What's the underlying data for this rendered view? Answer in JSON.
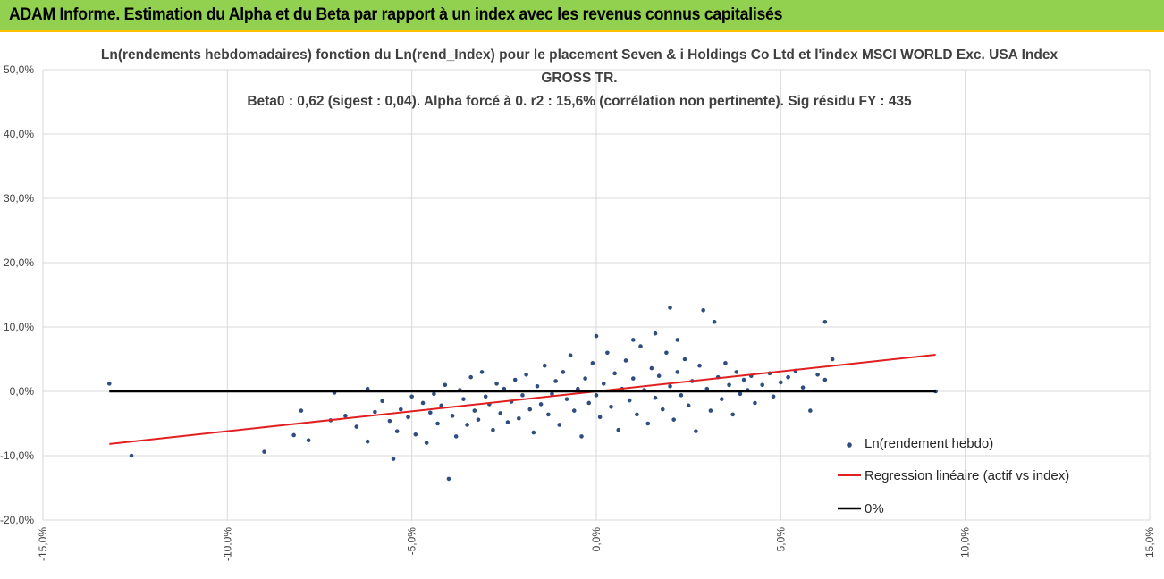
{
  "banner": {
    "title": "ADAM Informe. Estimation du Alpha et du Beta par rapport à un index avec les revenus connus capitalisés"
  },
  "colors": {
    "banner_bg": "#92d050",
    "banner_border": "#ffc000",
    "points": "#2f4d7e",
    "regression": "#e02020",
    "zero_line": "#000000",
    "grid": "#d9d9d9"
  },
  "chart_data": {
    "type": "scatter",
    "title_lines": [
      "Ln(rendements hebdomadaires) fonction du Ln(rend_Index) pour le placement Seven & i Holdings Co Ltd et l'index MSCI WORLD Exc. USA Index",
      "GROSS TR.",
      "Beta0 : 0,62  (sigest : 0,04).  Alpha forcé à 0. r2 : 15,6% (corrélation non pertinente). Sig résidu FY : 435"
    ],
    "xlim": [
      -0.15,
      0.15
    ],
    "ylim": [
      -0.2,
      0.5
    ],
    "x_ticks": [
      -0.15,
      -0.1,
      -0.05,
      0.0,
      0.05,
      0.1,
      0.15
    ],
    "x_tick_labels": [
      "-15,0%",
      "-10,0%",
      "-5,0%",
      "0,0%",
      "5,0%",
      "10,0%",
      "15,0%"
    ],
    "y_ticks": [
      -0.2,
      -0.1,
      0.0,
      0.1,
      0.2,
      0.3,
      0.4,
      0.5
    ],
    "y_tick_labels": [
      "-20,0%",
      "-10,0%",
      "0,0%",
      "10,0%",
      "20,0%",
      "30,0%",
      "40,0%",
      "50,0%"
    ],
    "grid": true,
    "legend_position": "bottom-right",
    "series": [
      {
        "name": "Ln(rendement hebdo)",
        "kind": "scatter",
        "points": [
          [
            -0.132,
            0.012
          ],
          [
            -0.126,
            -0.1
          ],
          [
            -0.09,
            -0.094
          ],
          [
            -0.082,
            -0.068
          ],
          [
            -0.08,
            -0.03
          ],
          [
            -0.078,
            -0.076
          ],
          [
            -0.072,
            -0.045
          ],
          [
            -0.071,
            -0.002
          ],
          [
            -0.068,
            -0.038
          ],
          [
            -0.065,
            -0.055
          ],
          [
            -0.062,
            -0.078
          ],
          [
            -0.062,
            0.004
          ],
          [
            -0.06,
            -0.032
          ],
          [
            -0.058,
            -0.015
          ],
          [
            -0.056,
            -0.046
          ],
          [
            -0.055,
            -0.105
          ],
          [
            -0.054,
            -0.062
          ],
          [
            -0.053,
            -0.028
          ],
          [
            -0.051,
            -0.04
          ],
          [
            -0.05,
            -0.008
          ],
          [
            -0.049,
            -0.067
          ],
          [
            -0.047,
            -0.018
          ],
          [
            -0.046,
            -0.08
          ],
          [
            -0.045,
            -0.033
          ],
          [
            -0.044,
            -0.004
          ],
          [
            -0.043,
            -0.05
          ],
          [
            -0.042,
            -0.022
          ],
          [
            -0.041,
            0.01
          ],
          [
            -0.04,
            -0.136
          ],
          [
            -0.039,
            -0.038
          ],
          [
            -0.038,
            -0.07
          ],
          [
            -0.037,
            0.002
          ],
          [
            -0.036,
            -0.012
          ],
          [
            -0.035,
            -0.052
          ],
          [
            -0.034,
            0.022
          ],
          [
            -0.033,
            -0.03
          ],
          [
            -0.032,
            -0.044
          ],
          [
            -0.031,
            0.03
          ],
          [
            -0.03,
            -0.008
          ],
          [
            -0.029,
            -0.02
          ],
          [
            -0.028,
            -0.06
          ],
          [
            -0.027,
            0.012
          ],
          [
            -0.026,
            -0.034
          ],
          [
            -0.025,
            0.004
          ],
          [
            -0.024,
            -0.048
          ],
          [
            -0.023,
            -0.016
          ],
          [
            -0.022,
            0.018
          ],
          [
            -0.021,
            -0.042
          ],
          [
            -0.02,
            -0.006
          ],
          [
            -0.019,
            0.026
          ],
          [
            -0.018,
            -0.028
          ],
          [
            -0.017,
            -0.064
          ],
          [
            -0.016,
            0.008
          ],
          [
            -0.015,
            -0.02
          ],
          [
            -0.014,
            0.04
          ],
          [
            -0.013,
            -0.036
          ],
          [
            -0.012,
            -0.004
          ],
          [
            -0.011,
            0.016
          ],
          [
            -0.01,
            -0.052
          ],
          [
            -0.009,
            0.03
          ],
          [
            -0.008,
            -0.012
          ],
          [
            -0.007,
            0.056
          ],
          [
            -0.006,
            -0.03
          ],
          [
            -0.005,
            0.004
          ],
          [
            -0.004,
            -0.07
          ],
          [
            -0.003,
            0.02
          ],
          [
            -0.002,
            -0.018
          ],
          [
            -0.001,
            0.044
          ],
          [
            0.0,
            -0.006
          ],
          [
            0.0,
            0.086
          ],
          [
            0.001,
            -0.04
          ],
          [
            0.002,
            0.012
          ],
          [
            0.003,
            0.06
          ],
          [
            0.004,
            -0.024
          ],
          [
            0.005,
            0.028
          ],
          [
            0.006,
            -0.06
          ],
          [
            0.007,
            0.004
          ],
          [
            0.008,
            0.048
          ],
          [
            0.009,
            -0.014
          ],
          [
            0.01,
            0.02
          ],
          [
            0.011,
            -0.036
          ],
          [
            0.012,
            0.07
          ],
          [
            0.013,
            0.002
          ],
          [
            0.014,
            -0.05
          ],
          [
            0.015,
            0.036
          ],
          [
            0.016,
            -0.01
          ],
          [
            0.017,
            0.024
          ],
          [
            0.018,
            -0.028
          ],
          [
            0.019,
            0.06
          ],
          [
            0.02,
            0.008
          ],
          [
            0.021,
            -0.044
          ],
          [
            0.022,
            0.03
          ],
          [
            0.023,
            -0.006
          ],
          [
            0.024,
            0.05
          ],
          [
            0.025,
            -0.022
          ],
          [
            0.026,
            0.016
          ],
          [
            0.027,
            -0.062
          ],
          [
            0.028,
            0.04
          ],
          [
            0.029,
            0.126
          ],
          [
            0.03,
            0.004
          ],
          [
            0.031,
            -0.03
          ],
          [
            0.032,
            0.108
          ],
          [
            0.033,
            0.022
          ],
          [
            0.034,
            -0.012
          ],
          [
            0.035,
            0.044
          ],
          [
            0.036,
            0.01
          ],
          [
            0.037,
            -0.036
          ],
          [
            0.038,
            0.03
          ],
          [
            0.039,
            -0.004
          ],
          [
            0.04,
            0.018
          ],
          [
            0.041,
            0.002
          ],
          [
            0.042,
            0.024
          ],
          [
            0.043,
            -0.018
          ],
          [
            0.045,
            0.01
          ],
          [
            0.047,
            0.028
          ],
          [
            0.048,
            -0.008
          ],
          [
            0.05,
            0.014
          ],
          [
            0.052,
            0.022
          ],
          [
            0.054,
            0.032
          ],
          [
            0.056,
            0.006
          ],
          [
            0.058,
            -0.03
          ],
          [
            0.06,
            0.026
          ],
          [
            0.062,
            0.018
          ],
          [
            0.062,
            0.108
          ],
          [
            0.064,
            0.05
          ],
          [
            0.092,
            0.0
          ],
          [
            0.02,
            0.13
          ],
          [
            0.016,
            0.09
          ],
          [
            0.01,
            0.08
          ],
          [
            0.022,
            0.08
          ]
        ]
      },
      {
        "name": "Regression linéaire (actif vs index)",
        "kind": "line",
        "x": [
          -0.132,
          0.092
        ],
        "y": [
          -0.0818,
          0.057
        ]
      },
      {
        "name": "0%",
        "kind": "line",
        "x": [
          -0.132,
          0.092
        ],
        "y": [
          0.0,
          0.0
        ]
      }
    ]
  }
}
